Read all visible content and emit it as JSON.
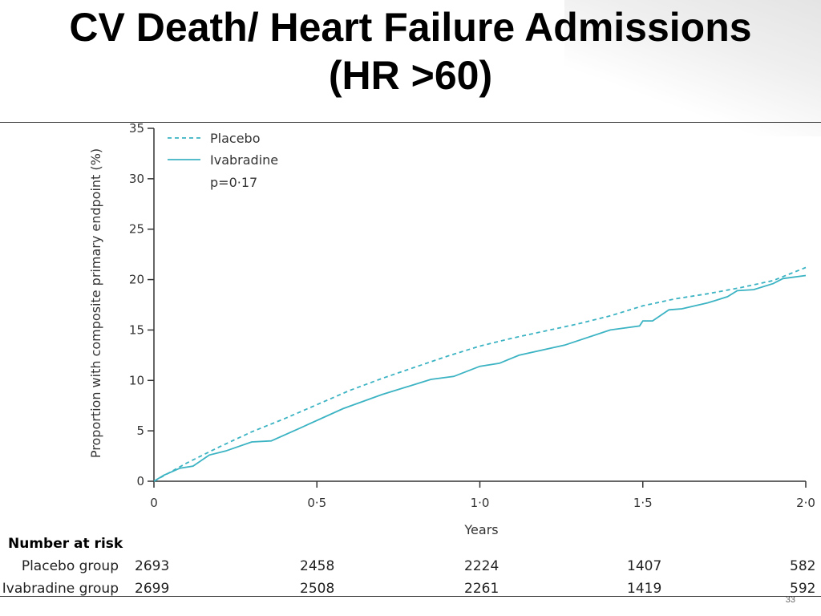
{
  "slide": {
    "title_line1": "CV Death/ Heart Failure Admissions",
    "title_line2": "(HR >60)",
    "slide_number": "33"
  },
  "chart_data": {
    "type": "line",
    "xlabel": "Years",
    "ylabel": "Proportion with composite primary endpoint (%)",
    "xlim": [
      0,
      2.0
    ],
    "ylim": [
      0,
      35
    ],
    "x_ticks": [
      0,
      0.5,
      1.0,
      1.5,
      2.0
    ],
    "x_tick_labels": [
      "0",
      "0·5",
      "1·0",
      "1·5",
      "2·0"
    ],
    "y_ticks": [
      0,
      5,
      10,
      15,
      20,
      25,
      30,
      35
    ],
    "y_tick_labels": [
      "0",
      "5",
      "10",
      "15",
      "20",
      "25",
      "30",
      "35"
    ],
    "grid": false,
    "legend_position": "top-left",
    "series": [
      {
        "name": "Placebo",
        "style": "dashed",
        "color": "#3bb3c3",
        "points": [
          [
            0,
            0
          ],
          [
            0.1,
            1.8
          ],
          [
            0.2,
            3.4
          ],
          [
            0.3,
            4.9
          ],
          [
            0.4,
            6.2
          ],
          [
            0.5,
            7.6
          ],
          [
            0.6,
            9.0
          ],
          [
            0.7,
            10.2
          ],
          [
            0.8,
            11.3
          ],
          [
            0.9,
            12.4
          ],
          [
            1.0,
            13.4
          ],
          [
            1.1,
            14.2
          ],
          [
            1.2,
            14.9
          ],
          [
            1.3,
            15.6
          ],
          [
            1.4,
            16.4
          ],
          [
            1.5,
            17.4
          ],
          [
            1.6,
            18.1
          ],
          [
            1.7,
            18.6
          ],
          [
            1.8,
            19.2
          ],
          [
            1.9,
            19.9
          ],
          [
            2.0,
            21.2
          ]
        ]
      },
      {
        "name": "Ivabradine",
        "style": "solid",
        "color": "#3bb3c3",
        "points": [
          [
            0,
            0
          ],
          [
            0.03,
            0.6
          ],
          [
            0.08,
            1.3
          ],
          [
            0.12,
            1.5
          ],
          [
            0.17,
            2.6
          ],
          [
            0.22,
            3.0
          ],
          [
            0.3,
            3.9
          ],
          [
            0.36,
            4.0
          ],
          [
            0.45,
            5.3
          ],
          [
            0.58,
            7.2
          ],
          [
            0.7,
            8.6
          ],
          [
            0.85,
            10.1
          ],
          [
            0.92,
            10.4
          ],
          [
            1.0,
            11.4
          ],
          [
            1.06,
            11.7
          ],
          [
            1.12,
            12.5
          ],
          [
            1.26,
            13.5
          ],
          [
            1.4,
            15.0
          ],
          [
            1.49,
            15.4
          ],
          [
            1.5,
            15.9
          ],
          [
            1.53,
            15.9
          ],
          [
            1.58,
            17.0
          ],
          [
            1.62,
            17.1
          ],
          [
            1.7,
            17.7
          ],
          [
            1.76,
            18.3
          ],
          [
            1.79,
            18.9
          ],
          [
            1.84,
            19.0
          ],
          [
            1.9,
            19.6
          ],
          [
            1.93,
            20.1
          ],
          [
            2.0,
            20.4
          ]
        ]
      }
    ],
    "annotation": "p=0·17"
  },
  "risk_table": {
    "header": "Number at risk",
    "rows": [
      {
        "label": "Placebo group",
        "values": [
          "2693",
          "2458",
          "2224",
          "1407",
          "582"
        ]
      },
      {
        "label": "Ivabradine group",
        "values": [
          "2699",
          "2508",
          "2261",
          "1419",
          "592"
        ]
      }
    ]
  }
}
